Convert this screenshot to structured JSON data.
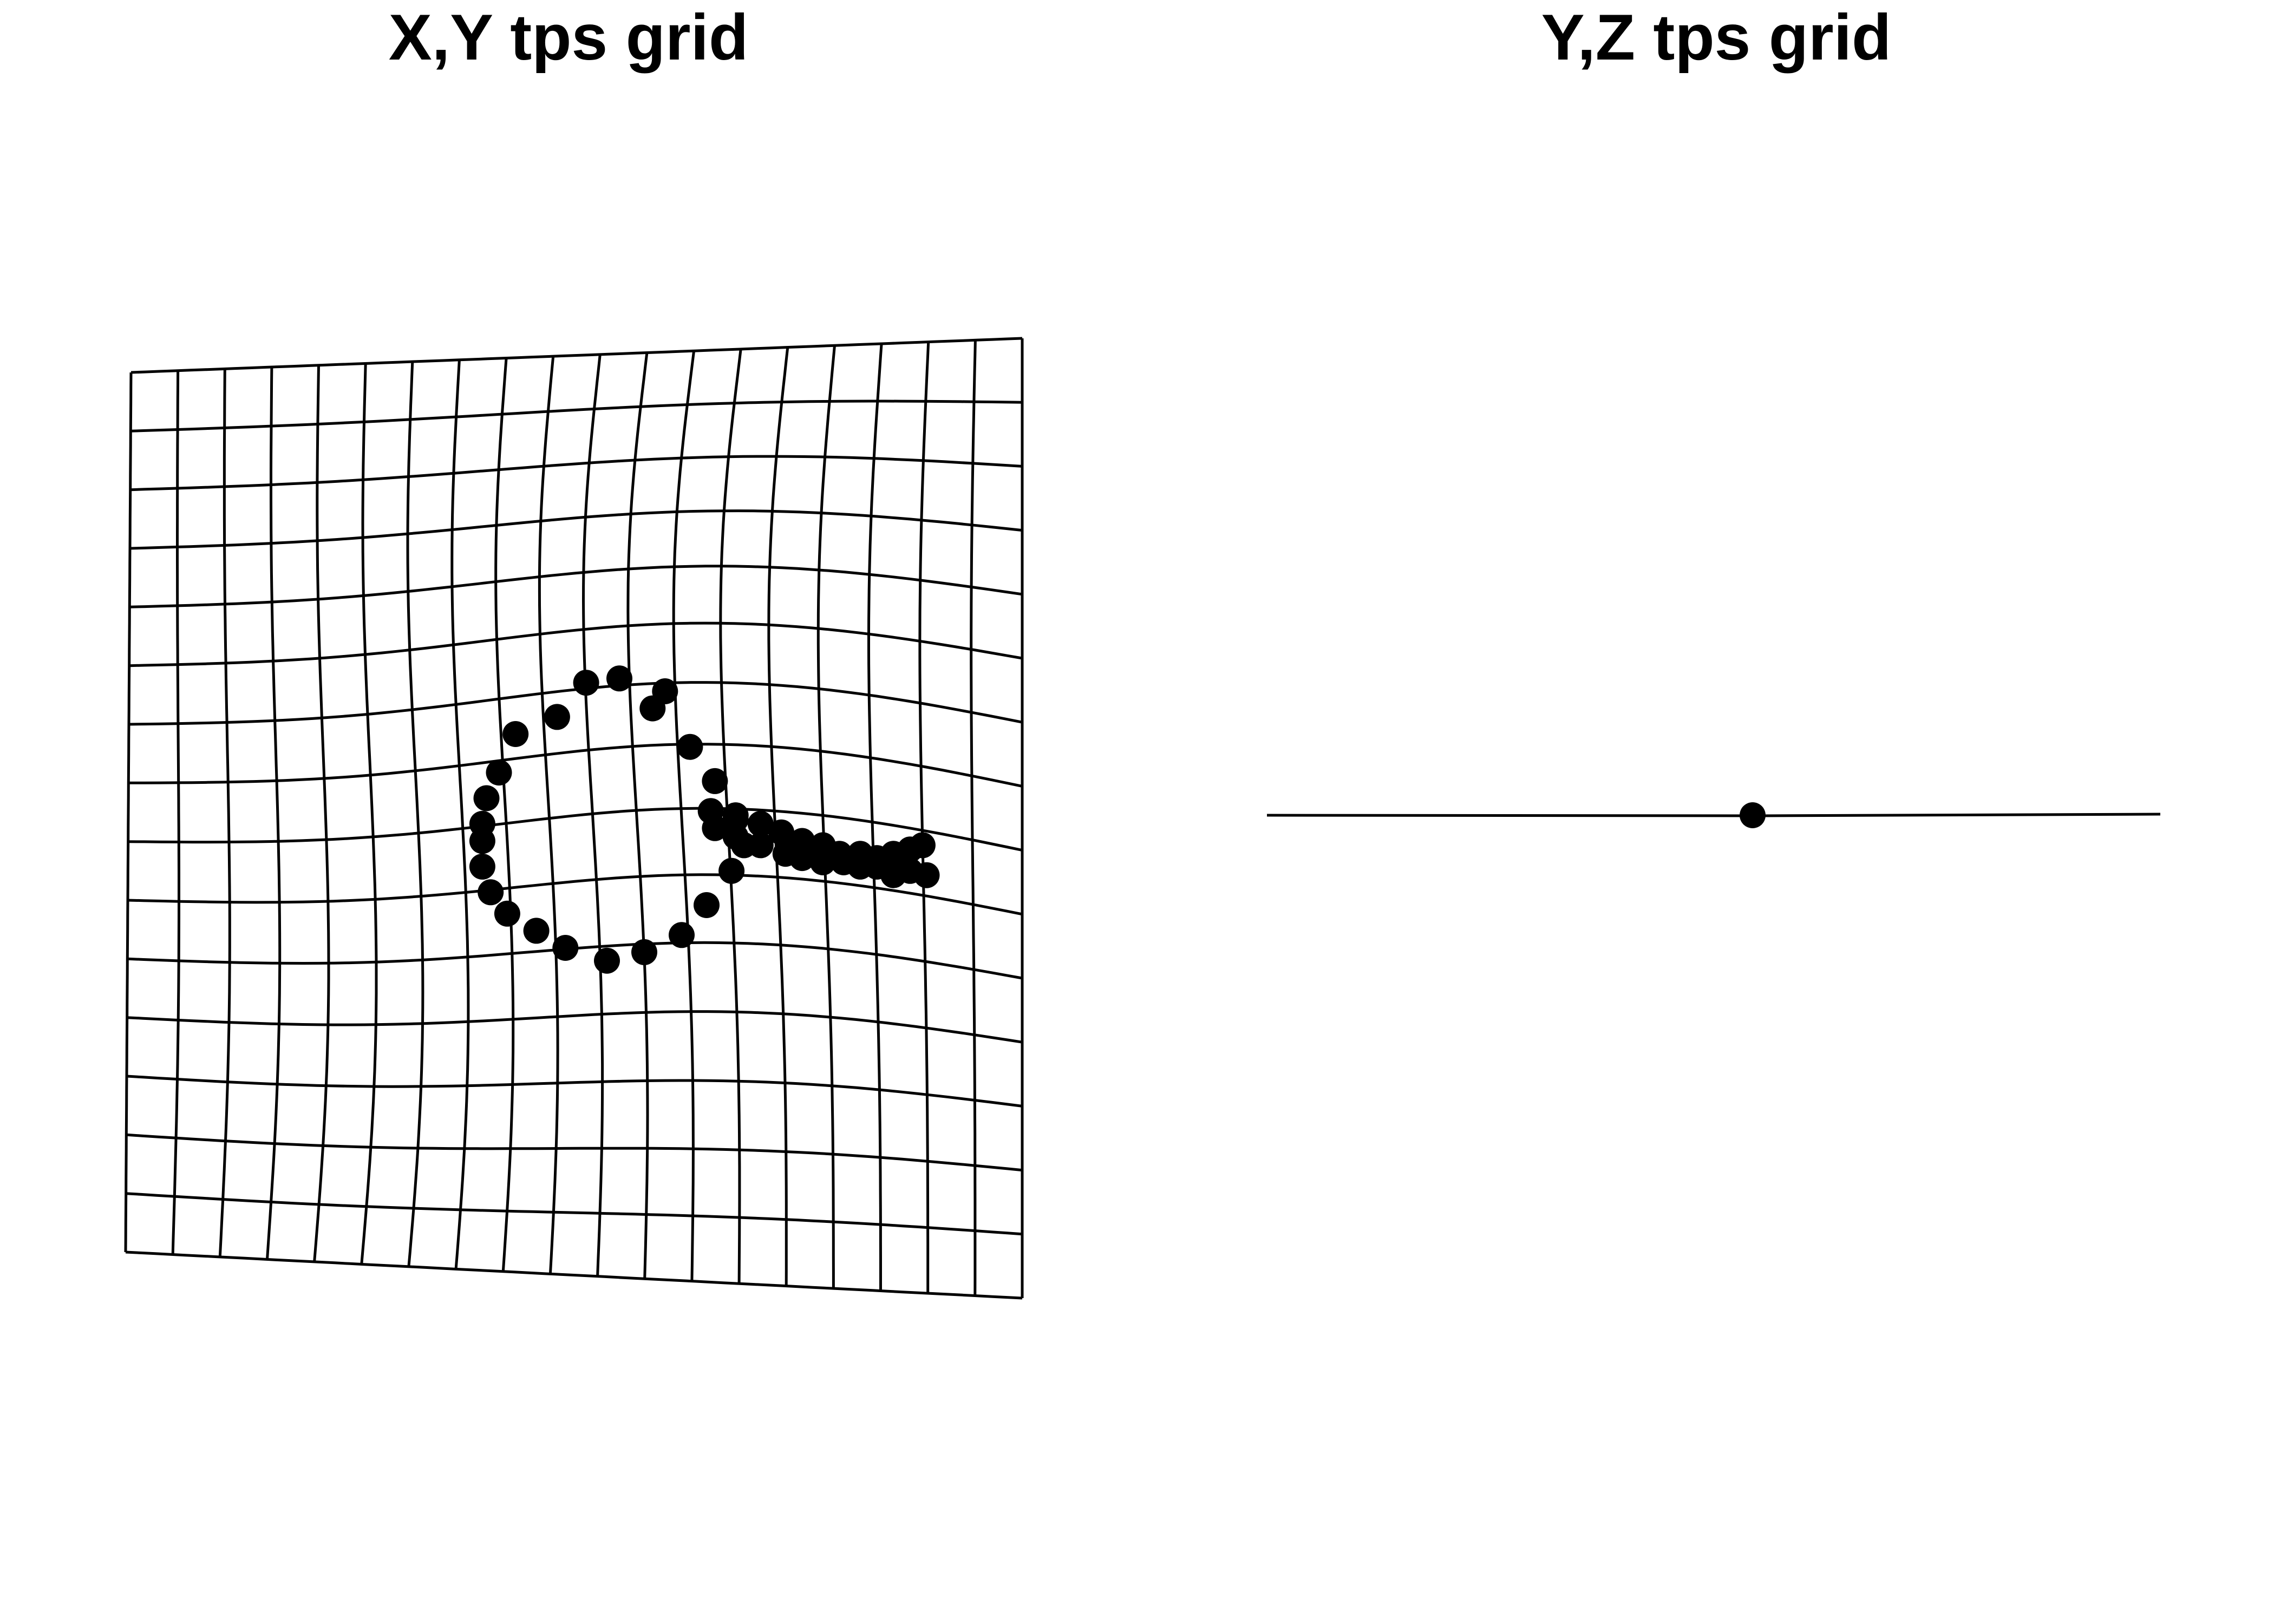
{
  "panels": [
    {
      "title": "X,Y tps grid"
    },
    {
      "title": "Y,Z tps grid"
    }
  ],
  "colors": {
    "line": "#000000",
    "point": "#000000",
    "background": "#ffffff"
  },
  "xy_grid": {
    "columns": 20,
    "rows": 16
  },
  "landmarks": [
    [
      0.2,
      0.0
    ],
    [
      -0.1,
      -0.4
    ],
    [
      -0.9,
      0.3
    ],
    [
      -1.7,
      0.2
    ],
    [
      -2.4,
      -0.6
    ],
    [
      -3.4,
      -1.0
    ],
    [
      -3.8,
      -1.9
    ],
    [
      -4.1,
      -2.5
    ],
    [
      -4.2,
      -3.1
    ],
    [
      -4.2,
      -3.5
    ],
    [
      -4.2,
      -4.1
    ],
    [
      -4.0,
      -4.7
    ],
    [
      -3.6,
      -5.2
    ],
    [
      -2.9,
      -5.6
    ],
    [
      -2.2,
      -6.0
    ],
    [
      -1.2,
      -6.3
    ],
    [
      -0.3,
      -6.1
    ],
    [
      0.6,
      -5.7
    ],
    [
      1.2,
      -5.0
    ],
    [
      1.8,
      -4.2
    ],
    [
      2.1,
      -3.6
    ],
    [
      1.9,
      -2.9
    ],
    [
      1.4,
      -2.1
    ],
    [
      0.8,
      -1.3
    ],
    [
      1.3,
      -2.8
    ],
    [
      1.9,
      -3.0
    ],
    [
      2.5,
      -3.1
    ],
    [
      3.0,
      -3.3
    ],
    [
      3.5,
      -3.5
    ],
    [
      4.0,
      -3.6
    ],
    [
      4.4,
      -3.8
    ],
    [
      4.9,
      -3.8
    ],
    [
      5.3,
      -3.9
    ],
    [
      5.7,
      -3.8
    ],
    [
      6.1,
      -3.7
    ],
    [
      6.4,
      -3.6
    ],
    [
      1.4,
      -3.2
    ],
    [
      1.9,
      -3.4
    ],
    [
      2.5,
      -3.6
    ],
    [
      3.1,
      -3.8
    ],
    [
      3.5,
      -3.9
    ],
    [
      4.0,
      -4.0
    ],
    [
      4.5,
      -4.0
    ],
    [
      4.9,
      -4.1
    ],
    [
      5.3,
      -4.1
    ],
    [
      5.7,
      -4.3
    ],
    [
      6.1,
      -4.2
    ],
    [
      6.5,
      -4.3
    ]
  ],
  "yz_point": {
    "y": 0.0,
    "z": 0.0
  }
}
